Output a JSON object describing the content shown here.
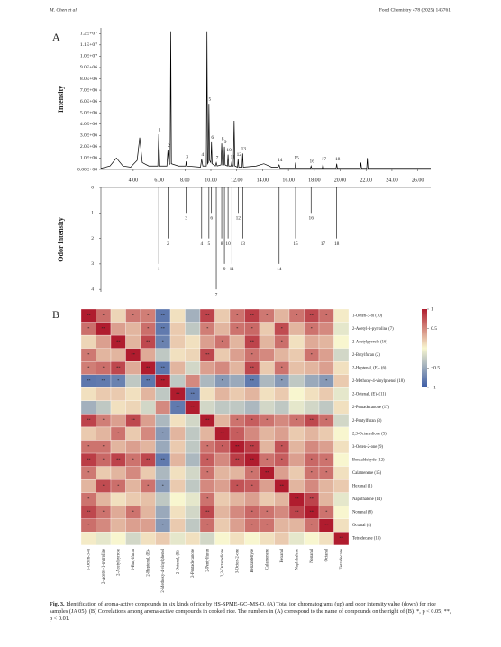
{
  "header": {
    "left": "M. Chen et al.",
    "right": "Food Chemistry 478 (2025) 143761"
  },
  "caption": {
    "label": "Fig. 3.",
    "text": "Identification of aroma-active compounds in six kinds of rice by HS-SPME-GC–MS-O. (A) Total ion chromatograms (up) and odor intensity value (down) for rice samples (JA 05). (B) Correlations among aroma-active compounds in cooked rice. The numbers in (A) correspond to the name of compounds on the right of (B). *, p < 0.05; **, p < 0.01."
  },
  "chart_data": [
    {
      "type": "line",
      "panel": "A",
      "ylabel": "Intensity",
      "color": "#000000",
      "x": [
        1.5,
        2.2,
        2.7,
        3.2,
        3.8,
        4.3,
        4.5,
        4.7,
        5.2,
        5.9,
        5.97,
        6.05,
        6.6,
        6.68,
        6.76,
        6.85,
        6.9,
        6.95,
        7.5,
        8.05,
        8.09,
        8.13,
        9.2,
        9.29,
        9.38,
        9.65,
        9.7,
        9.75,
        9.8,
        9.85,
        9.9,
        10.0,
        10.05,
        10.1,
        10.35,
        10.42,
        10.49,
        10.78,
        10.84,
        10.9,
        11.0,
        11.05,
        11.1,
        11.28,
        11.33,
        11.38,
        11.57,
        11.62,
        11.67,
        11.74,
        11.8,
        11.86,
        12.06,
        12.11,
        12.16,
        12.41,
        12.46,
        12.51,
        13.5,
        14.1,
        14.7,
        15.2,
        15.28,
        15.36,
        16.5,
        16.55,
        16.6,
        17.7,
        17.75,
        17.8,
        18.62,
        18.67,
        18.72,
        19.68,
        19.73,
        19.78,
        21.55,
        21.6,
        21.65,
        22.05,
        22.1,
        22.15,
        27
      ],
      "values": [
        100000,
        300000,
        1000000,
        300000,
        200000,
        800000,
        2800000,
        600000,
        300000,
        300000,
        3100000,
        300000,
        300000,
        1700000,
        400000,
        500000,
        12200000,
        500000,
        300000,
        300000,
        700000,
        300000,
        200000,
        900000,
        300000,
        300000,
        12200000,
        500000,
        600000,
        5800000,
        800000,
        600000,
        2400000,
        500000,
        300000,
        600000,
        300000,
        400000,
        2300000,
        400000,
        400000,
        2000000,
        400000,
        300000,
        1300000,
        300000,
        300000,
        700000,
        300000,
        300000,
        4300000,
        300000,
        200000,
        900000,
        200000,
        200000,
        1400000,
        200000,
        300000,
        500000,
        200000,
        200000,
        400000,
        100000,
        100000,
        600000,
        100000,
        100000,
        300000,
        100000,
        100000,
        500000,
        100000,
        100000,
        500000,
        100000,
        100000,
        600000,
        100000,
        100000,
        1000000,
        100000,
        100000
      ],
      "xlim": [
        1.5,
        27
      ],
      "ylim": [
        0,
        12500000
      ],
      "xticks": [
        {
          "value": 4,
          "label": "4.00"
        },
        {
          "value": 6,
          "label": "6.00"
        },
        {
          "value": 8,
          "label": "8.00"
        },
        {
          "value": 10,
          "label": "10.00"
        },
        {
          "value": 12,
          "label": "12.00"
        },
        {
          "value": 14,
          "label": "14.00"
        },
        {
          "value": 16,
          "label": "16.00"
        },
        {
          "value": 18,
          "label": "18.00"
        },
        {
          "value": 20,
          "label": "20.00"
        },
        {
          "value": 22,
          "label": "22.00"
        },
        {
          "value": 24,
          "label": "24.00"
        },
        {
          "value": 26,
          "label": "26.00"
        }
      ],
      "yticks": [
        {
          "value": 0,
          "label": "0.00E+00"
        },
        {
          "value": 1000000,
          "label": "1.0E+06"
        },
        {
          "value": 2000000,
          "label": "2.0E+06"
        },
        {
          "value": 3000000,
          "label": "3.0E+06"
        },
        {
          "value": 4000000,
          "label": "4.0E+06"
        },
        {
          "value": 5000000,
          "label": "5.0E+06"
        },
        {
          "value": 6000000,
          "label": "6.0E+06"
        },
        {
          "value": 7000000,
          "label": "7.0E+06"
        },
        {
          "value": 8000000,
          "label": "8.0E+06"
        },
        {
          "value": 9000000,
          "label": "9.0E+06"
        },
        {
          "value": 10000000,
          "label": "1.0E+07"
        },
        {
          "value": 11000000,
          "label": "1.1E+07"
        },
        {
          "value": 12000000,
          "label": "1.2E+07"
        }
      ],
      "annotations": [
        {
          "label": "1",
          "x": 5.97,
          "y": 3100000
        },
        {
          "label": "2",
          "x": 6.68,
          "y": 1700000
        },
        {
          "label": "3",
          "x": 8.09,
          "y": 700000
        },
        {
          "label": "4",
          "x": 9.29,
          "y": 900000
        },
        {
          "label": "5",
          "x": 9.85,
          "y": 5800000
        },
        {
          "label": "6",
          "x": 10.05,
          "y": 2400000
        },
        {
          "label": "7",
          "x": 10.42,
          "y": 600000
        },
        {
          "label": "8",
          "x": 10.84,
          "y": 2300000
        },
        {
          "label": "9",
          "x": 11.05,
          "y": 2000000
        },
        {
          "label": "10",
          "x": 11.33,
          "y": 1300000
        },
        {
          "label": "11",
          "x": 11.62,
          "y": 700000
        },
        {
          "label": "12",
          "x": 12.11,
          "y": 900000
        },
        {
          "label": "13",
          "x": 12.46,
          "y": 1400000
        },
        {
          "label": "14",
          "x": 15.28,
          "y": 400000
        },
        {
          "label": "15",
          "x": 16.55,
          "y": 600000
        },
        {
          "label": "16",
          "x": 17.75,
          "y": 300000
        },
        {
          "label": "17",
          "x": 18.67,
          "y": 500000
        },
        {
          "label": "18",
          "x": 19.73,
          "y": 500000
        }
      ]
    },
    {
      "type": "bar",
      "ylabel": "Odor intensity",
      "color": "#000000",
      "y_inverted": true,
      "x": [
        5.97,
        6.68,
        8.09,
        9.29,
        9.85,
        10.05,
        10.42,
        10.84,
        11.05,
        11.33,
        11.62,
        12.11,
        12.46,
        15.28,
        16.55,
        17.75,
        18.67,
        19.73
      ],
      "values": [
        3,
        2,
        1,
        2,
        2,
        1,
        4,
        2,
        3,
        2,
        3,
        1,
        2,
        3,
        2,
        1,
        2,
        2
      ],
      "labels": [
        "1",
        "2",
        "3",
        "4",
        "5",
        "6",
        "7",
        "8",
        "9",
        "10",
        "11",
        "12",
        "13",
        "14",
        "15",
        "16",
        "17",
        "18"
      ],
      "xlim": [
        1.5,
        27
      ],
      "ylim": [
        0,
        4.1
      ],
      "yticks": [
        0,
        1,
        2,
        3,
        4
      ]
    },
    {
      "type": "heatmap",
      "panel": "B",
      "cmap": [
        "#3b5ba6",
        "#f8f6cf",
        "#b01c2e"
      ],
      "clim": [
        -1,
        1
      ],
      "cticks": [
        1,
        0.5,
        {
          "value": -0.5,
          "label": "−0.5"
        },
        {
          "value": -1,
          "label": "−1"
        }
      ],
      "row_labels": [
        "1-Octen-3-ol (10)",
        "2-Acetyl-1-pyrroline (7)",
        "2-Acetylpyrrole (16)",
        "2-Butylfuran (2)",
        "2-Heptenal, (E)- (6)",
        "2-Methoxy-4-vinylphenol (18)",
        "2-Octenal, (E)- (11)",
        "2-Pentadecanone (17)",
        "2-Pentylfuran (3)",
        "2,3-Octanedione (5)",
        "3-Octen-2-one (9)",
        "Benzaldehyde (12)",
        "Calamenene (15)",
        "Hexanal (1)",
        "Naphthalene (14)",
        "Nonanal (8)",
        "Octanal (4)",
        "Tetradecane (13)"
      ],
      "col_labels": [
        "1-Octen-3-ol",
        "2-Acetyl-1-pyrroline",
        "2-Acetylpyrrole",
        "2-Butylfuran",
        "2-Heptenal, (E)-",
        "2-Methoxy-4-vinylphenol",
        "2-Octenal, (E)-",
        "2-Pentadecanone",
        "2-Pentylfuran",
        "2,3-Octanedione",
        "3-Octen-2-one",
        "Benzaldehyde",
        "Calamenene",
        "Hexanal",
        "Naphthalene",
        "Nonanal",
        "Octanal",
        "Tetradecane"
      ],
      "values": [
        [
          1,
          0.62,
          0.15,
          0.58,
          0.55,
          -0.82,
          0.1,
          -0.45,
          0.82,
          0.2,
          0.6,
          0.85,
          0.58,
          0.3,
          0.6,
          0.8,
          0.62,
          0.05
        ],
        [
          1,
          0.4,
          0.3,
          0.62,
          -0.8,
          0.2,
          -0.3,
          0.55,
          0.3,
          0.6,
          0.65,
          0.2,
          0.78,
          0.3,
          0.6,
          0.5,
          -0.1
        ],
        [
          1,
          0.3,
          0.8,
          -0.75,
          0.2,
          0.1,
          0.4,
          0.6,
          0.3,
          0.82,
          0.3,
          0.62,
          0.1,
          0.35,
          0.3,
          0
        ],
        [
          1,
          0.35,
          -0.3,
          0.1,
          0.15,
          0.8,
          0.2,
          0.4,
          0.6,
          0.5,
          0.3,
          0.2,
          0.6,
          0.4,
          -0.2
        ],
        [
          1,
          -0.82,
          0.3,
          -0.2,
          0.4,
          0.5,
          0.3,
          0.8,
          0.2,
          0.6,
          0.25,
          0.3,
          0.4,
          0.1
        ],
        [
          1,
          -0.3,
          0.5,
          -0.4,
          -0.6,
          -0.5,
          -0.8,
          -0.4,
          -0.6,
          -0.3,
          -0.5,
          -0.6,
          0.2
        ],
        [
          1,
          -0.8,
          0.1,
          0.3,
          0.2,
          0.3,
          0.1,
          0.2,
          0,
          0.1,
          0.2,
          -0.1
        ],
        [
          1,
          -0.2,
          -0.3,
          -0.3,
          -0.4,
          -0.2,
          -0.3,
          -0.1,
          -0.2,
          -0.3,
          0.1
        ],
        [
          1,
          0.3,
          0.6,
          0.7,
          0.6,
          0.5,
          0.6,
          0.8,
          0.62,
          -0.2
        ],
        [
          1,
          0.7,
          0.5,
          0.3,
          0.4,
          0.2,
          0.3,
          0.2,
          0
        ],
        [
          1,
          0.85,
          0.3,
          0.75,
          0.3,
          0.5,
          0.4,
          0.1
        ],
        [
          1,
          0.6,
          0.7,
          0.4,
          0.65,
          0.6,
          0
        ],
        [
          1,
          0.4,
          0.2,
          0.6,
          0.6,
          0.1
        ],
        [
          1,
          0.3,
          0.5,
          0.3,
          0.2
        ],
        [
          1,
          0.82,
          0.3,
          -0.1
        ],
        [
          1,
          0.6,
          0
        ],
        [
          1,
          0.1
        ],
        [
          1
        ]
      ],
      "significance": [
        [
          "**",
          "*",
          null,
          "*",
          "*",
          "**",
          null,
          null,
          "**",
          null,
          "*",
          "**",
          "*",
          null,
          "*",
          "**",
          "*",
          null
        ],
        [
          "**",
          null,
          null,
          "*",
          "**",
          null,
          null,
          "*",
          null,
          "*",
          "*",
          null,
          "*",
          null,
          "*",
          null,
          null
        ],
        [
          "**",
          null,
          "**",
          "*",
          null,
          null,
          null,
          "*",
          null,
          "**",
          null,
          "*",
          null,
          null,
          null,
          null
        ],
        [
          "**",
          null,
          null,
          null,
          null,
          "**",
          null,
          null,
          "*",
          null,
          null,
          null,
          "*",
          null,
          null
        ],
        [
          "**",
          "**",
          null,
          null,
          null,
          null,
          null,
          "**",
          null,
          "*",
          null,
          null,
          null,
          null
        ],
        [
          "**",
          null,
          null,
          null,
          "*",
          null,
          "**",
          null,
          "*",
          null,
          null,
          "*",
          null
        ],
        [
          "**",
          "**",
          null,
          null,
          null,
          null,
          null,
          null,
          null,
          null,
          null,
          null
        ],
        [
          "**",
          null,
          null,
          null,
          null,
          null,
          null,
          null,
          null,
          null,
          null
        ],
        [
          "**",
          null,
          "*",
          "*",
          "*",
          null,
          "*",
          "**",
          "*",
          null
        ],
        [
          "**",
          "*",
          null,
          null,
          null,
          null,
          null,
          null,
          null
        ],
        [
          "**",
          "**",
          null,
          "*",
          null,
          null,
          null,
          null
        ],
        [
          "**",
          "*",
          "*",
          null,
          "*",
          "*",
          null
        ],
        [
          "**",
          null,
          null,
          "*",
          "*",
          null
        ],
        [
          "**",
          null,
          null,
          null,
          null
        ],
        [
          "**",
          "**",
          null,
          null
        ],
        [
          "**",
          "*",
          null
        ],
        [
          "**",
          null
        ],
        [
          "**"
        ]
      ]
    }
  ]
}
